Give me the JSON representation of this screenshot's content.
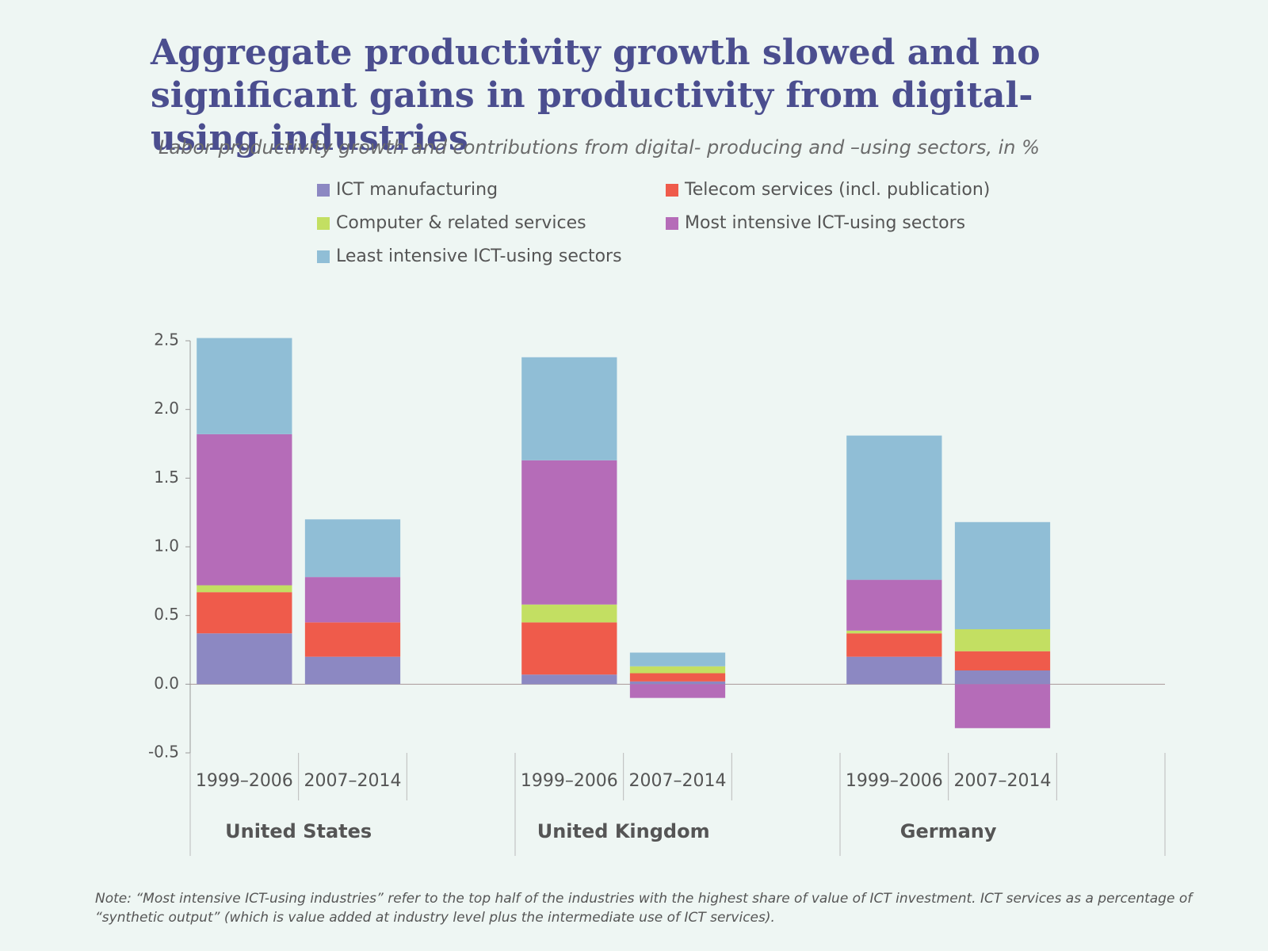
{
  "chart_data": {
    "type": "bar",
    "stacked": true,
    "title": "Aggregate productivity growth slowed and no significant gains in productivity from digital-using industries",
    "subtitle": "Labor productivity growth and contributions from digital- producing and –using sectors, in %",
    "categories": [
      "1999–2006",
      "2007–2014",
      "1999–2006",
      "2007–2014",
      "1999–2006",
      "2007–2014"
    ],
    "groups": [
      "United States",
      "United Kingdom",
      "Germany"
    ],
    "series": [
      {
        "name": "ICT manufacturing",
        "color": "#8c88c2",
        "values": [
          0.37,
          0.2,
          0.07,
          0.02,
          0.2,
          0.1
        ]
      },
      {
        "name": "Telecom services (incl. publication)",
        "color": "#ef5b4b",
        "values": [
          0.3,
          0.25,
          0.38,
          0.06,
          0.17,
          0.14
        ]
      },
      {
        "name": "Computer & related services",
        "color": "#c3df62",
        "values": [
          0.05,
          0,
          0.13,
          0.05,
          0.02,
          0.16
        ]
      },
      {
        "name": "Most intensive ICT-using sectors",
        "color": "#b56cb8",
        "values": [
          1.1,
          0.33,
          1.05,
          -0.1,
          0.37,
          -0.32
        ]
      },
      {
        "name": "Least intensive ICT-using sectors",
        "color": "#90bed6",
        "values": [
          0.7,
          0.42,
          0.75,
          0.1,
          1.05,
          0.78
        ]
      }
    ],
    "ylim": [
      -0.5,
      2.5
    ],
    "yticks": [
      -0.5,
      {
        "value": 0,
        "label": "0.0"
      },
      0.5,
      {
        "value": 1,
        "label": "1.0"
      },
      1.5,
      {
        "value": 2,
        "label": "2.0"
      },
      2.5
    ],
    "grid": false,
    "note": "Note: “Most intensive ICT-using industries” refer to the top half of the industries with the highest share of value of ICT investment. ICT services as a percentage of “synthetic output” (which is value added at industry level plus the intermediate use of ICT services)."
  }
}
